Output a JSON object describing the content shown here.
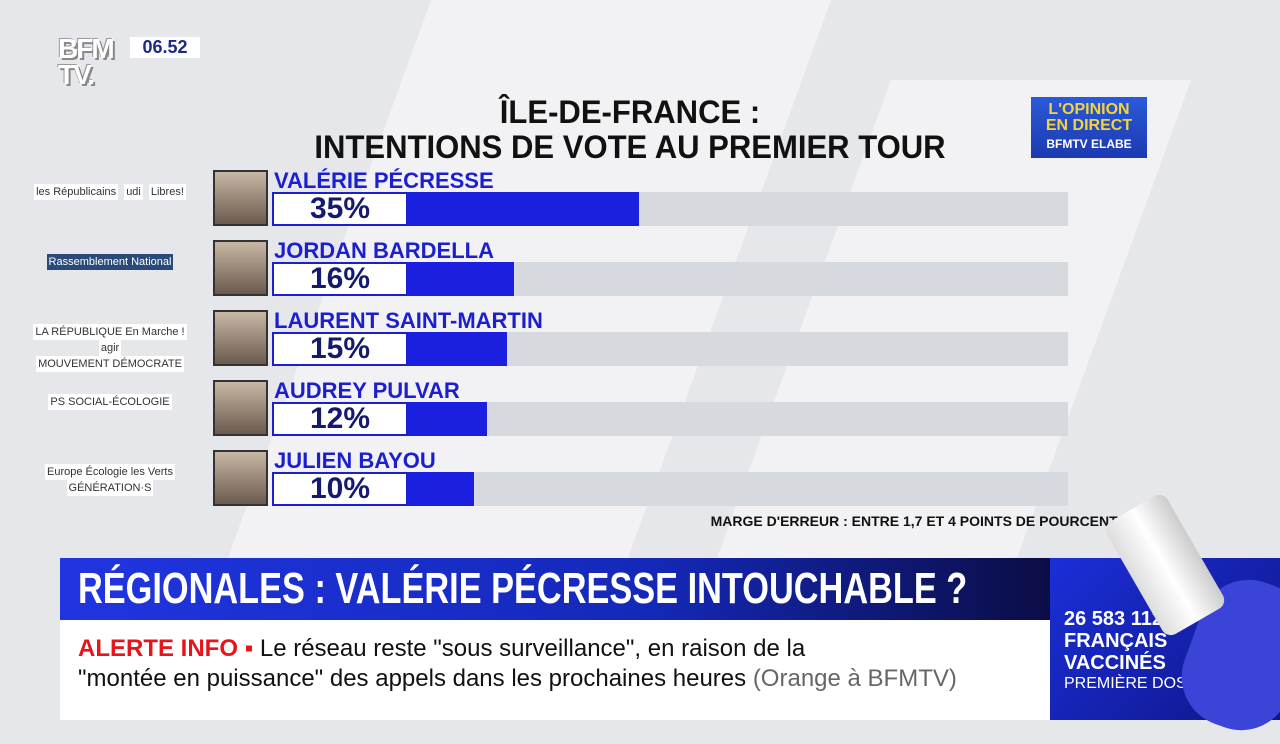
{
  "channel": {
    "logo": "BFM TV.",
    "time": "06.52"
  },
  "chart_data": {
    "type": "bar",
    "title": "ÎLE-DE-FRANCE :",
    "subtitle": "INTENTIONS DE VOTE AU PREMIER TOUR",
    "orientation": "horizontal",
    "unit": "%",
    "xlim": [
      0,
      100
    ],
    "grid": false,
    "categories": [
      "VALÉRIE PÉCRESSE",
      "JORDAN BARDELLA",
      "LAURENT SAINT-MARTIN",
      "AUDREY PULVAR",
      "JULIEN BAYOU"
    ],
    "values": [
      35,
      16,
      15,
      12,
      10
    ],
    "labels": [
      "35%",
      "16%",
      "15%",
      "12%",
      "10%"
    ],
    "parties": [
      [
        "les Républicains",
        "udi",
        "Libres!"
      ],
      [
        "Rassemblement National"
      ],
      [
        "LA RÉPUBLIQUE En Marche !",
        "agir",
        "MOUVEMENT DÉMOCRATE"
      ],
      [
        "PS SOCIAL-ÉCOLOGIE"
      ],
      [
        "Europe Écologie les Verts",
        "GÉNÉRATION·S"
      ]
    ],
    "bar_color": "#1b1fe0",
    "annotation": "MARGE D'ERREUR : ENTRE 1,7 ET 4 POINTS DE POURCENTAGE"
  },
  "opinion_logo": {
    "line1": "L'OPINION",
    "line2": "EN DIRECT",
    "line3": "BFMTV ELABE"
  },
  "headline": "RÉGIONALES : VALÉRIE PÉCRESSE INTOUCHABLE ?",
  "ticker": {
    "label": "ALERTE INFO ▪",
    "line1": "Le réseau reste \"sous surveillance\", en raison de la",
    "line2": "\"montée en puissance\" des appels dans les prochaines heures",
    "source": "(Orange à BFMTV)"
  },
  "vaccine": {
    "count": "26 583 112",
    "line2": "FRANÇAIS",
    "line3": "VACCINÉS",
    "line4": "PREMIÈRE DOSE"
  }
}
